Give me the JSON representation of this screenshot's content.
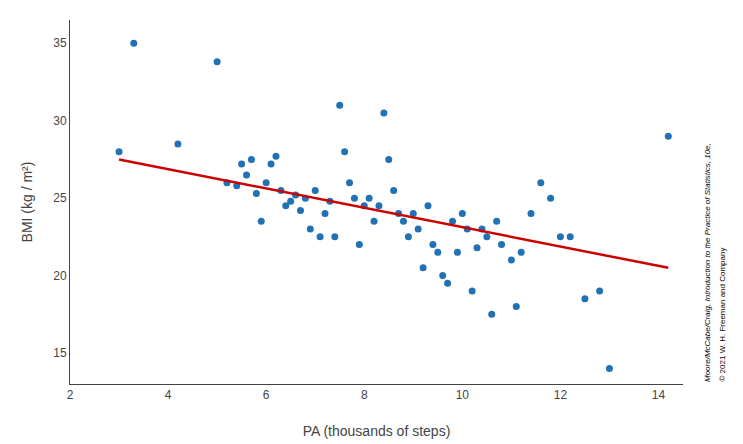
{
  "chart_data": {
    "type": "scatter",
    "xlabel": "PA (thousands of steps)",
    "ylabel": "BMI (kg / m²)",
    "series": [
      {
        "type": "scatter",
        "color": "#2171b5",
        "x": [
          3.0,
          3.3,
          4.2,
          5.0,
          5.2,
          5.4,
          5.5,
          5.6,
          5.7,
          5.8,
          5.9,
          6.0,
          6.1,
          6.2,
          6.3,
          6.4,
          6.5,
          6.6,
          6.7,
          6.8,
          6.9,
          7.0,
          7.1,
          7.2,
          7.3,
          7.4,
          7.5,
          7.6,
          7.7,
          7.8,
          7.9,
          8.0,
          8.1,
          8.2,
          8.3,
          8.4,
          8.5,
          8.6,
          8.7,
          8.8,
          8.9,
          9.0,
          9.1,
          9.2,
          9.3,
          9.4,
          9.5,
          9.6,
          9.7,
          9.8,
          9.9,
          10.0,
          10.1,
          10.2,
          10.3,
          10.4,
          10.5,
          10.6,
          10.7,
          10.8,
          11.0,
          11.1,
          11.2,
          11.4,
          11.6,
          11.8,
          12.0,
          12.2,
          12.5,
          12.8,
          13.0,
          14.2
        ],
        "values": [
          28.0,
          35.0,
          28.5,
          33.8,
          26.0,
          25.8,
          27.2,
          26.5,
          27.5,
          25.3,
          23.5,
          26.0,
          27.2,
          27.7,
          25.5,
          24.5,
          24.8,
          25.2,
          24.2,
          25.0,
          23.0,
          25.5,
          22.5,
          24.0,
          24.8,
          22.5,
          31.0,
          28.0,
          26.0,
          25.0,
          22.0,
          24.5,
          25.0,
          23.5,
          24.5,
          30.5,
          27.5,
          25.5,
          24.0,
          23.5,
          22.5,
          24.0,
          23.0,
          20.5,
          24.5,
          22.0,
          21.5,
          20.0,
          19.5,
          23.5,
          21.5,
          24.0,
          23.0,
          19.0,
          21.8,
          23.0,
          22.5,
          17.5,
          23.5,
          22.0,
          21.0,
          18.0,
          21.5,
          24.0,
          26.0,
          25.0,
          22.5,
          22.5,
          18.5,
          19.0,
          14.0,
          29.0
        ]
      },
      {
        "type": "line",
        "color": "#cc0000",
        "x": [
          3.0,
          14.2
        ],
        "values": [
          27.5,
          20.5
        ]
      }
    ],
    "xlim": [
      2,
      14.5
    ],
    "ylim": [
      13,
      36.5
    ],
    "xticks": [
      2,
      4,
      6,
      8,
      10,
      12,
      14
    ],
    "yticks": [
      15,
      20,
      25,
      30,
      35
    ],
    "grid": false,
    "annotations": [
      "Moore/McCabe/Craig, Introduction to the Practice of Statistics, 10e,",
      "© 2021 W. H. Freeman and Company"
    ]
  }
}
